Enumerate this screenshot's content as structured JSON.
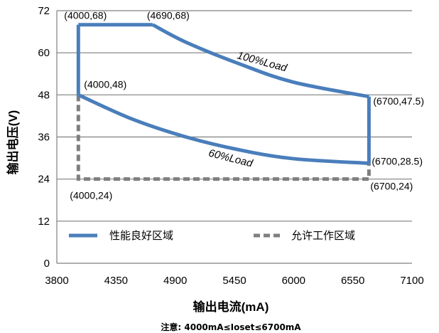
{
  "chart_data": {
    "type": "line",
    "xlabel": "输出电流(mA)",
    "ylabel": "输出电压(V)",
    "xlim": [
      3800,
      7100
    ],
    "ylim": [
      0,
      72
    ],
    "xticks": [
      3800,
      4350,
      4900,
      5450,
      6000,
      6550,
      7100
    ],
    "yticks": [
      0,
      12,
      24,
      36,
      48,
      60,
      72
    ],
    "grid": "horizontal",
    "legend_position": "bottom-inside",
    "series": [
      {
        "name": "性能良好区域",
        "style": "solid",
        "color": "#4a7ebb",
        "boundary": {
          "upper_flat": [
            [
              4000,
              68
            ],
            [
              4690,
              68
            ]
          ],
          "upper_curve": [
            [
              4690,
              68
            ],
            [
              5000,
              63.0
            ],
            [
              5500,
              56.8
            ],
            [
              6000,
              51.6
            ],
            [
              6700,
              47.5
            ]
          ],
          "lower_curve": [
            [
              4000,
              48
            ],
            [
              4500,
              41.1
            ],
            [
              5000,
              36.0
            ],
            [
              5500,
              32.3
            ],
            [
              6000,
              29.8
            ],
            [
              6700,
              28.5
            ]
          ],
          "left_edge": [
            [
              4000,
              48
            ],
            [
              4000,
              68
            ]
          ],
          "right_edge": [
            [
              6700,
              28.5
            ],
            [
              6700,
              47.5
            ]
          ]
        }
      },
      {
        "name": "允许工作区域",
        "style": "dashed",
        "color": "#7f7f7f",
        "boundary": [
          [
            4000,
            48
          ],
          [
            4000,
            24
          ],
          [
            6700,
            24
          ],
          [
            6700,
            28.5
          ]
        ]
      }
    ],
    "annotations": [
      {
        "text": "(4000,68)",
        "x": 4000,
        "y": 68
      },
      {
        "text": "(4690,68)",
        "x": 4690,
        "y": 68
      },
      {
        "text": "(4000,48)",
        "x": 4000,
        "y": 48
      },
      {
        "text": "(6700,47.5)",
        "x": 6700,
        "y": 47.5
      },
      {
        "text": "(6700,28.5)",
        "x": 6700,
        "y": 28.5
      },
      {
        "text": "(4000,24)",
        "x": 4000,
        "y": 24
      },
      {
        "text": "(6700,24)",
        "x": 6700,
        "y": 24
      },
      {
        "text": "100%Load",
        "x": 5800,
        "y": 58
      },
      {
        "text": "60%Load",
        "x": 5600,
        "y": 33
      }
    ],
    "note": "注意: 4000mA≤Ioset≤6700mA"
  }
}
